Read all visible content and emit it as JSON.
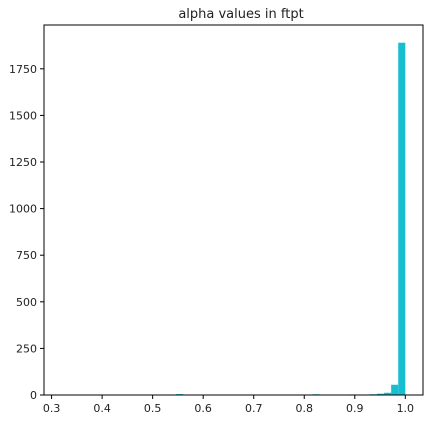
{
  "chart_data": {
    "type": "bar",
    "title": "alpha values in ftpt",
    "xlabel": "",
    "ylabel": "",
    "xlim": [
      0.285,
      1.035
    ],
    "ylim": [
      0,
      1985
    ],
    "x_ticks": [
      0.3,
      0.4,
      0.5,
      0.6,
      0.7,
      0.8,
      0.9,
      1.0
    ],
    "x_tick_labels": [
      "0.3",
      "0.4",
      "0.5",
      "0.6",
      "0.7",
      "0.8",
      "0.9",
      "1.0"
    ],
    "y_ticks": [
      0,
      250,
      500,
      750,
      1000,
      1250,
      1500,
      1750
    ],
    "y_tick_labels": [
      "0",
      "250",
      "500",
      "750",
      "1000",
      "1250",
      "1500",
      "1750"
    ],
    "bar_color": "#17becf",
    "grid": false,
    "bins": [
      {
        "x0": 0.546,
        "x1": 0.56,
        "value": 5
      },
      {
        "x0": 0.816,
        "x1": 0.83,
        "value": 4
      },
      {
        "x0": 0.888,
        "x1": 0.902,
        "value": 3
      },
      {
        "x0": 0.93,
        "x1": 0.944,
        "value": 4
      },
      {
        "x0": 0.944,
        "x1": 0.958,
        "value": 7
      },
      {
        "x0": 0.958,
        "x1": 0.972,
        "value": 12
      },
      {
        "x0": 0.972,
        "x1": 0.986,
        "value": 55
      },
      {
        "x0": 0.986,
        "x1": 1.0,
        "value": 1890
      }
    ]
  }
}
